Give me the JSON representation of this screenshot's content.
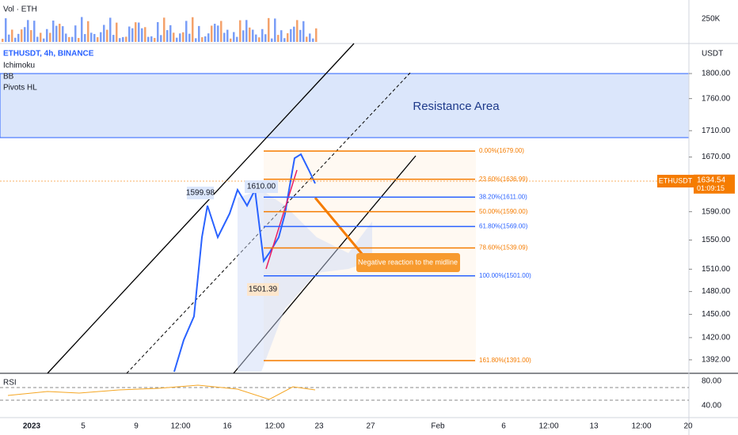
{
  "header": {
    "volume_label": "Vol · ETH",
    "symbol": "ETHUSDT, 4h, BINANCE",
    "indicators": [
      "Ichimoku",
      "BB",
      "Pivots HL"
    ]
  },
  "price_axis": {
    "unit": "USDT",
    "volume_tick": "250K",
    "ticks": [
      {
        "value": 1800,
        "label": "1800.00"
      },
      {
        "value": 1760,
        "label": "1760.00"
      },
      {
        "value": 1710,
        "label": "1710.00"
      },
      {
        "value": 1670,
        "label": "1670.00"
      },
      {
        "value": 1590,
        "label": "1590.00"
      },
      {
        "value": 1550,
        "label": "1550.00"
      },
      {
        "value": 1510,
        "label": "1510.00"
      },
      {
        "value": 1480,
        "label": "1480.00"
      },
      {
        "value": 1450,
        "label": "1450.00"
      },
      {
        "value": 1420,
        "label": "1420.00"
      },
      {
        "value": 1392,
        "label": "1392.00"
      }
    ]
  },
  "current_price": {
    "symbol": "ETHUSDT",
    "price": {
      "value": 1634.54,
      "label": "1634.54"
    },
    "countdown": "01:09:15"
  },
  "zone_label": "Resistance Area",
  "fib_levels": [
    {
      "value": 1679,
      "label": "0.00%(1679.00)",
      "color": "#f57c00"
    },
    {
      "value": 1636.99,
      "label": "23.60%(1636.99)",
      "color": "#f57c00"
    },
    {
      "value": 1611,
      "label": "38.20%(1611.00)",
      "color": "#2962ff"
    },
    {
      "value": 1590,
      "label": "50.00%(1590.00)",
      "color": "#f57c00"
    },
    {
      "value": 1569,
      "label": "61.80%(1569.00)",
      "color": "#2962ff"
    },
    {
      "value": 1539.09,
      "label": "78.60%(1539.09)",
      "color": "#f57c00"
    },
    {
      "value": 1501,
      "label": "100.00%(1501.00)",
      "color": "#2962ff"
    },
    {
      "value": 1391,
      "label": "161.80%(1391.00)",
      "color": "#f57c00"
    }
  ],
  "pivots": [
    "1599.98",
    "1610.00",
    "1501.39"
  ],
  "annotation": "Negative reaction to the midline",
  "rsi": {
    "label": "RSI",
    "ticks": [
      "80.00",
      "40.00"
    ]
  },
  "time_axis": [
    "2023",
    "5",
    "9",
    "12:00",
    "16",
    "12:00",
    "23",
    "27",
    "Feb",
    "6",
    "12:00",
    "13",
    "12:00",
    "20"
  ]
}
